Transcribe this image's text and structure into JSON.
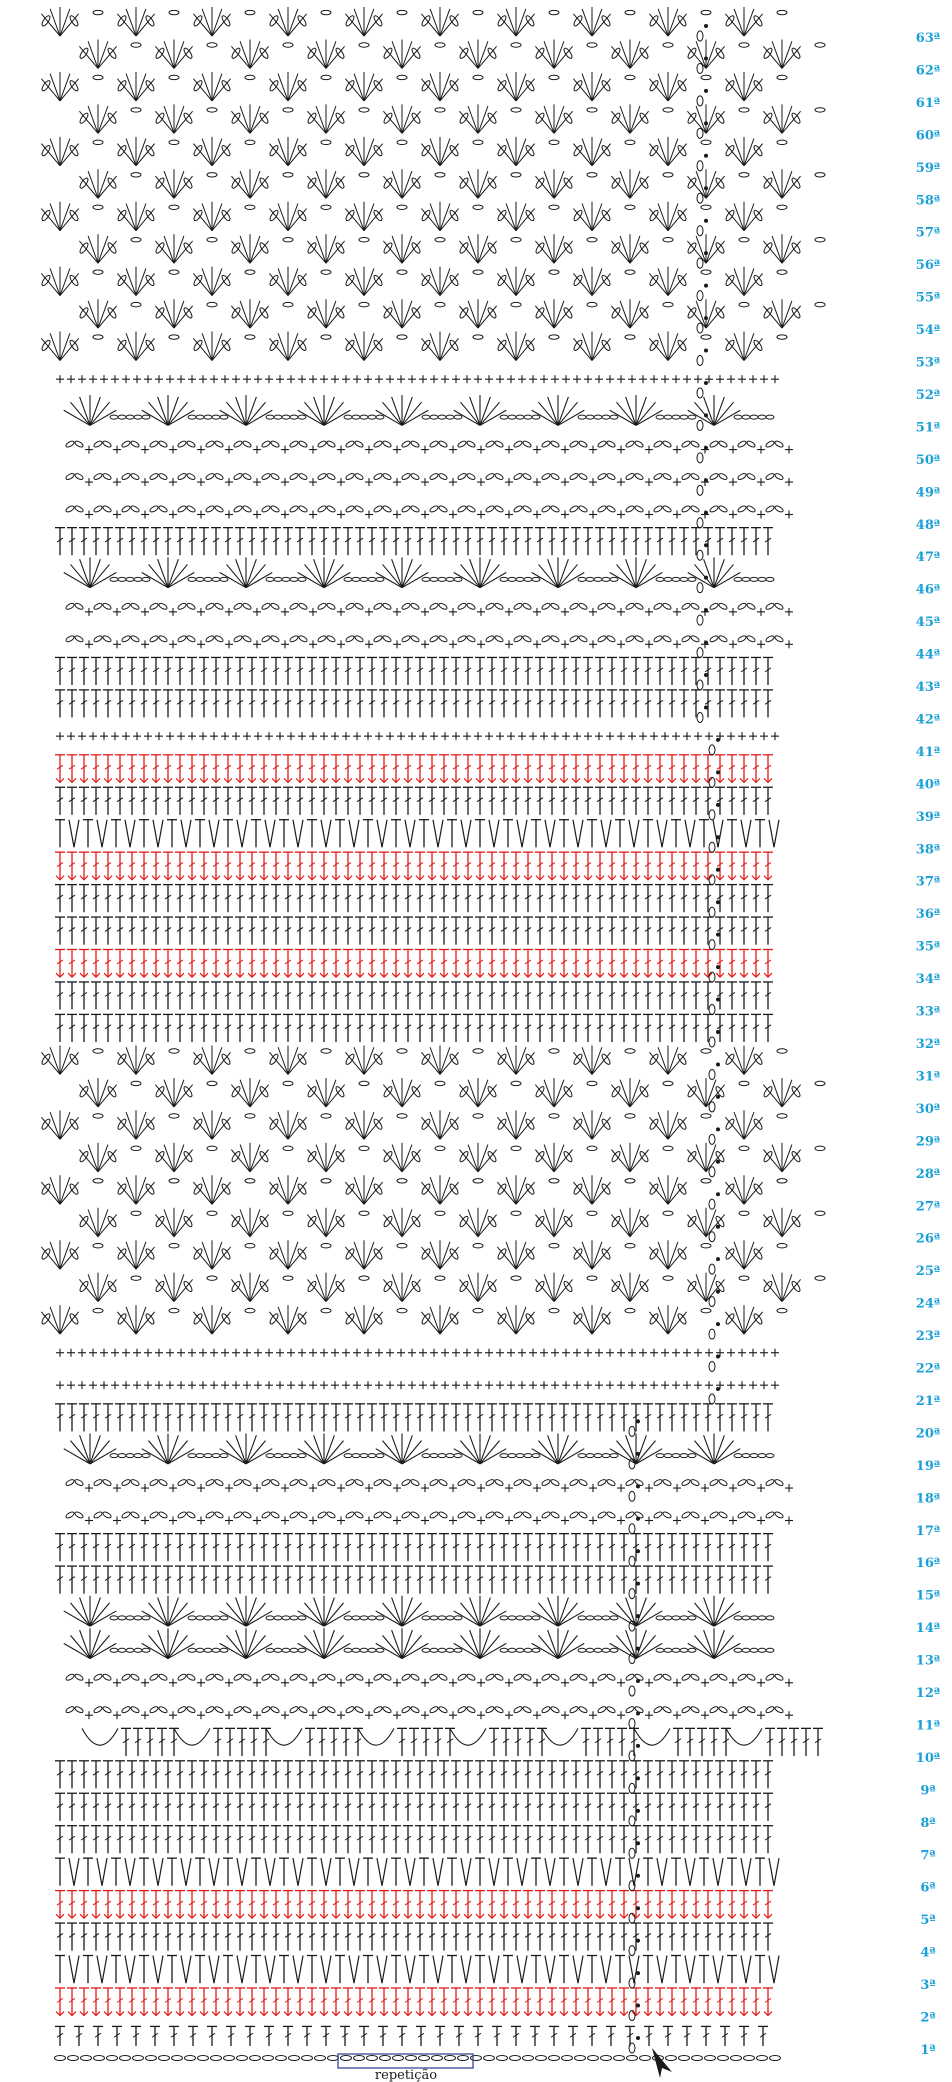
{
  "diagram": {
    "colors": {
      "ink": "#1a1a1a",
      "accent_red": "#e01b1b",
      "label_blue": "#1aa0d8",
      "repeat_box": "#2a3a8c"
    },
    "repeat_label": "repetição",
    "rows": [
      {
        "label": "1ª",
        "kind": "chain_base"
      },
      {
        "label": "2ª",
        "kind": "tr_red"
      },
      {
        "label": "3ª",
        "kind": "dc"
      },
      {
        "label": "4ª",
        "kind": "tr"
      },
      {
        "label": "5ª",
        "kind": "tr_red"
      },
      {
        "label": "6ª",
        "kind": "dc"
      },
      {
        "label": "7ª",
        "kind": "tr"
      },
      {
        "label": "8ª",
        "kind": "tr"
      },
      {
        "label": "9ª",
        "kind": "tr"
      },
      {
        "label": "10ª",
        "kind": "shell_down"
      },
      {
        "label": "11ª",
        "kind": "loops"
      },
      {
        "label": "12ª",
        "kind": "loops"
      },
      {
        "label": "13ª",
        "kind": "fan"
      },
      {
        "label": "14ª",
        "kind": "fan"
      },
      {
        "label": "15ª",
        "kind": "tr"
      },
      {
        "label": "16ª",
        "kind": "tr"
      },
      {
        "label": "17ª",
        "kind": "loops"
      },
      {
        "label": "18ª",
        "kind": "loops"
      },
      {
        "label": "19ª",
        "kind": "fan"
      },
      {
        "label": "20ª",
        "kind": "tr"
      },
      {
        "label": "21ª",
        "kind": "sc"
      },
      {
        "label": "22ª",
        "kind": "sc"
      },
      {
        "label": "23ª",
        "kind": "pineapple"
      },
      {
        "label": "24ª",
        "kind": "pineapple"
      },
      {
        "label": "25ª",
        "kind": "pineapple"
      },
      {
        "label": "26ª",
        "kind": "pineapple"
      },
      {
        "label": "27ª",
        "kind": "pineapple"
      },
      {
        "label": "28ª",
        "kind": "pineapple"
      },
      {
        "label": "29ª",
        "kind": "pineapple"
      },
      {
        "label": "30ª",
        "kind": "pineapple"
      },
      {
        "label": "31ª",
        "kind": "pineapple"
      },
      {
        "label": "32ª",
        "kind": "tr"
      },
      {
        "label": "33ª",
        "kind": "tr"
      },
      {
        "label": "34ª",
        "kind": "tr_red"
      },
      {
        "label": "35ª",
        "kind": "tr"
      },
      {
        "label": "36ª",
        "kind": "tr"
      },
      {
        "label": "37ª",
        "kind": "tr_red"
      },
      {
        "label": "38ª",
        "kind": "dc"
      },
      {
        "label": "39ª",
        "kind": "tr"
      },
      {
        "label": "40ª",
        "kind": "tr_red"
      },
      {
        "label": "41ª",
        "kind": "sc"
      },
      {
        "label": "42ª",
        "kind": "tr"
      },
      {
        "label": "43ª",
        "kind": "tr"
      },
      {
        "label": "44ª",
        "kind": "loops"
      },
      {
        "label": "45ª",
        "kind": "loops"
      },
      {
        "label": "46ª",
        "kind": "fan"
      },
      {
        "label": "47ª",
        "kind": "tr"
      },
      {
        "label": "48ª",
        "kind": "loops"
      },
      {
        "label": "49ª",
        "kind": "loops"
      },
      {
        "label": "50ª",
        "kind": "loops"
      },
      {
        "label": "51ª",
        "kind": "fan"
      },
      {
        "label": "52ª",
        "kind": "sc"
      },
      {
        "label": "53ª",
        "kind": "pineapple"
      },
      {
        "label": "54ª",
        "kind": "pineapple"
      },
      {
        "label": "55ª",
        "kind": "pineapple"
      },
      {
        "label": "56ª",
        "kind": "pineapple"
      },
      {
        "label": "57ª",
        "kind": "pineapple"
      },
      {
        "label": "58ª",
        "kind": "pineapple"
      },
      {
        "label": "59ª",
        "kind": "pineapple"
      },
      {
        "label": "60ª",
        "kind": "pineapple"
      },
      {
        "label": "61ª",
        "kind": "pineapple"
      },
      {
        "label": "62ª",
        "kind": "pineapple"
      },
      {
        "label": "63ª",
        "kind": "pineapple"
      }
    ]
  }
}
